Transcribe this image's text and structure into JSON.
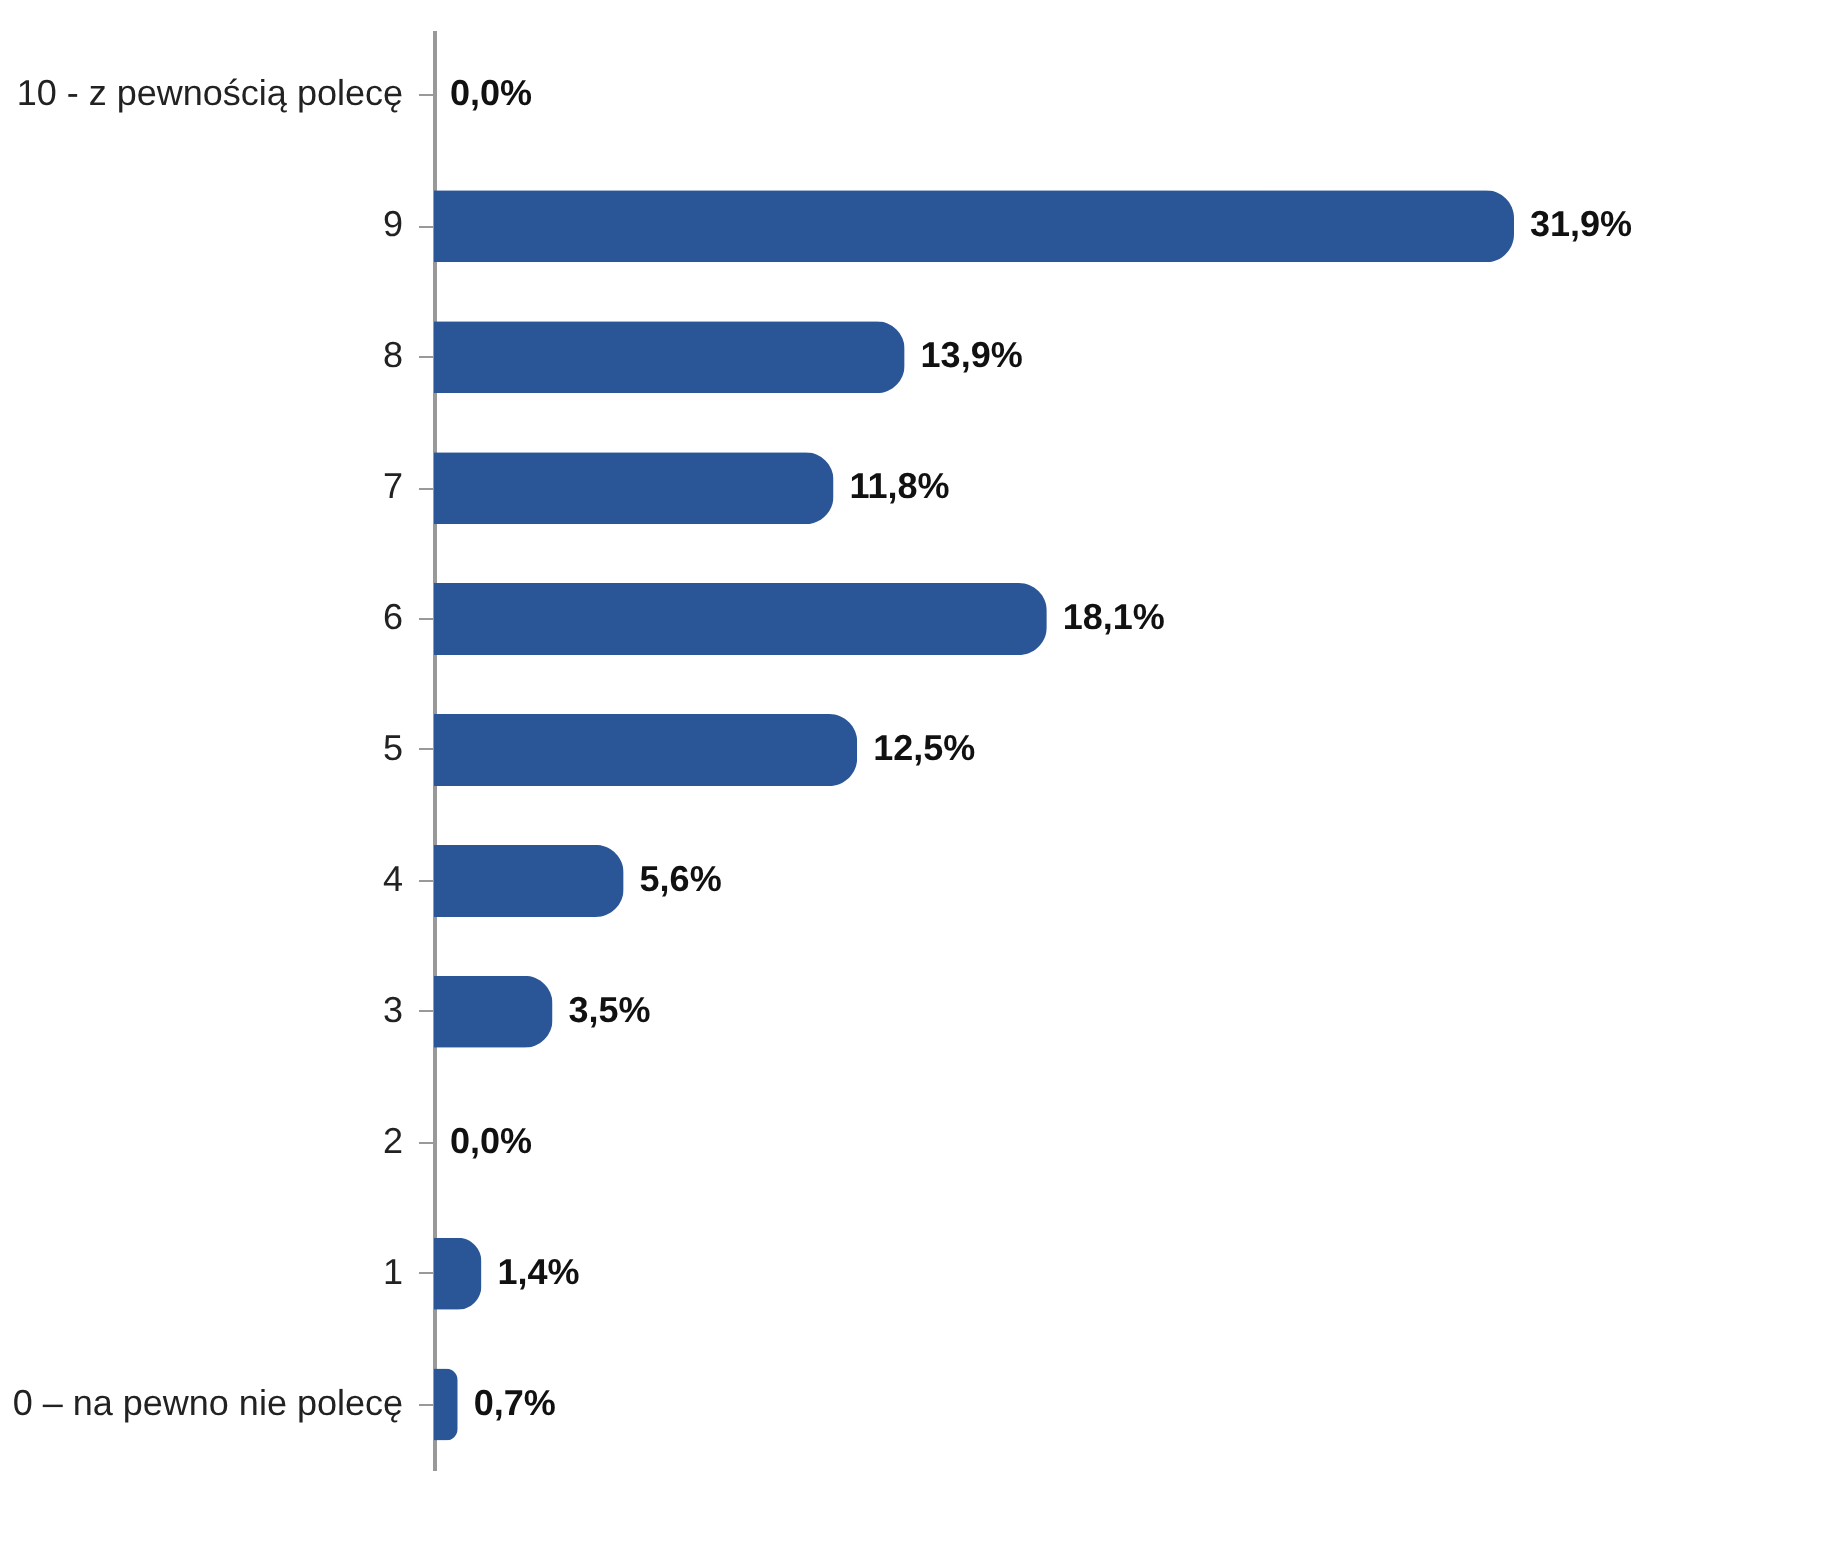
{
  "chart_data": {
    "type": "bar",
    "orientation": "horizontal",
    "categories": [
      "10 - z pewnością polecę",
      "9",
      "8",
      "7",
      "6",
      "5",
      "4",
      "3",
      "2",
      "1",
      "0 – na pewno nie polecę"
    ],
    "values": [
      0.0,
      31.9,
      13.9,
      11.8,
      18.1,
      12.5,
      5.6,
      3.5,
      0.0,
      1.4,
      0.7
    ],
    "value_labels": [
      "0,0%",
      "31,9%",
      "13,9%",
      "11,8%",
      "18,1%",
      "12,5%",
      "5,6%",
      "3,5%",
      "0,0%",
      "1,4%",
      "0,7%"
    ],
    "color": "#2a5597",
    "grid": false
  }
}
